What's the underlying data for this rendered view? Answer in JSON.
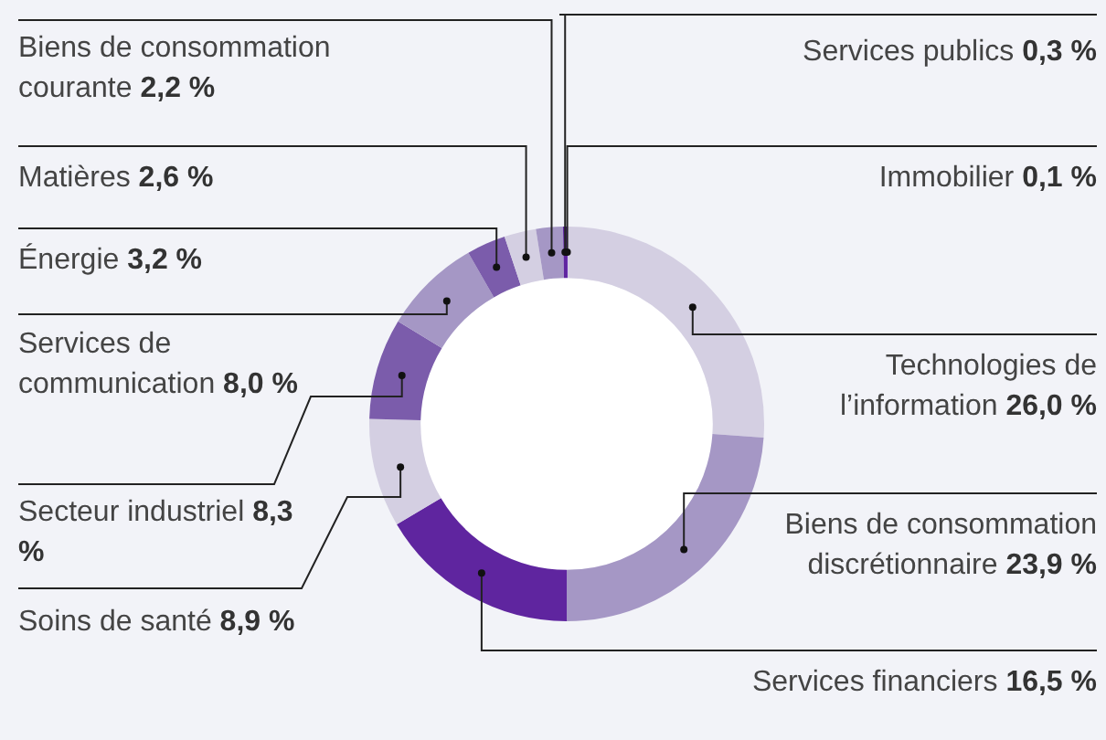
{
  "chart_data": {
    "type": "donut",
    "categories": [
      "Immobilier",
      "Technologies de l’information",
      "Biens de consommation discrétionnaire",
      "Services financiers",
      "Soins de santé",
      "Secteur industriel",
      "Services de communication",
      "Énergie",
      "Matières",
      "Biens de consommation courante",
      "Services publics"
    ],
    "values": [
      0.1,
      26.0,
      23.9,
      16.5,
      8.9,
      8.3,
      8.0,
      3.2,
      2.6,
      2.2,
      0.3
    ],
    "value_labels": [
      "0,1 %",
      "26,0 %",
      "23,9 %",
      "16,5 %",
      "8,9 %",
      "8,3 %",
      "8,0 %",
      "3,2 %",
      "2,6 %",
      "2,2 %",
      "0,3 %"
    ],
    "colors": [
      "#6a2fb0",
      "#d4cfe2",
      "#a597c5",
      "#5f259f",
      "#d4cfe2",
      "#7b5cab",
      "#a597c5",
      "#7b5cab",
      "#d4cfe2",
      "#a597c5",
      "#5f259f"
    ]
  }
}
